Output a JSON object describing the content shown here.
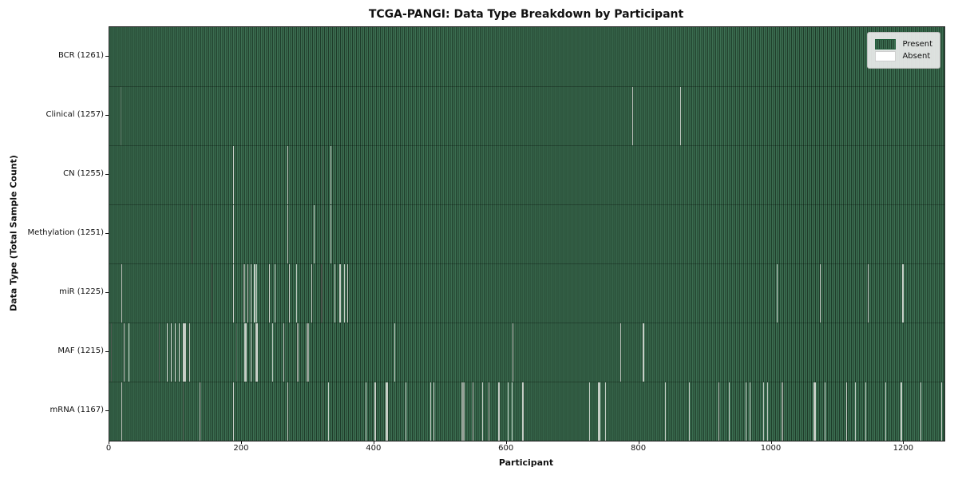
{
  "chart_data": {
    "type": "heatmap",
    "title": "TCGA-PANGI: Data Type Breakdown by Participant",
    "xlabel": "Participant",
    "ylabel": "Data Type (Total Sample Count)",
    "x_ticks": [
      0,
      200,
      400,
      600,
      800,
      1000,
      1200
    ],
    "xlim": [
      0,
      1261
    ],
    "total_participants": 1261,
    "grid": false,
    "legend_position": "upper right",
    "legend": [
      {
        "label": "Present",
        "color": "#2e8b57"
      },
      {
        "label": "Absent",
        "color": "#ffffff"
      }
    ],
    "colors": {
      "present": "#2e8b57",
      "absent": "#ffffff",
      "stripe_light": "#3c6f52",
      "stripe_dark": "#1f3c2a",
      "absent_line_l": "#c6cec6",
      "absent_line_m": "#95a197",
      "absent_line_d": "#4a564c"
    },
    "absent_line_format": "[participant_index, line_width_px, shade l|m|d]",
    "rows": [
      {
        "key": "bcr",
        "label": "BCR (1261)",
        "name": "BCR",
        "sample_count": 1261,
        "absent_lines": []
      },
      {
        "key": "clinical",
        "label": "Clinical (1257)",
        "name": "Clinical",
        "sample_count": 1257,
        "absent_lines": [
          [
            17,
            1,
            "d"
          ],
          [
            790,
            1,
            "l"
          ],
          [
            862,
            1,
            "l"
          ]
        ]
      },
      {
        "key": "cn",
        "label": "CN (1255)",
        "name": "CN",
        "sample_count": 1255,
        "absent_lines": [
          [
            188,
            1,
            "l"
          ],
          [
            269,
            1,
            "l"
          ],
          [
            323,
            1,
            "d"
          ],
          [
            334,
            1,
            "l"
          ]
        ]
      },
      {
        "key": "methylation",
        "label": "Methylation (1251)",
        "name": "Methylation",
        "sample_count": 1251,
        "absent_lines": [
          [
            125,
            1,
            "d"
          ],
          [
            188,
            1,
            "l"
          ],
          [
            270,
            1,
            "l"
          ],
          [
            309,
            1,
            "l"
          ],
          [
            323,
            1,
            "d"
          ],
          [
            334,
            1,
            "l"
          ]
        ]
      },
      {
        "key": "mir",
        "label": "miR (1225)",
        "name": "miR",
        "sample_count": 1225,
        "absent_lines": [
          [
            19,
            1,
            "l"
          ],
          [
            155,
            1,
            "d"
          ],
          [
            188,
            1,
            "l"
          ],
          [
            204,
            2,
            "m"
          ],
          [
            209,
            1,
            "l"
          ],
          [
            214,
            1,
            "l"
          ],
          [
            219,
            2,
            "l"
          ],
          [
            223,
            1,
            "l"
          ],
          [
            242,
            1,
            "l"
          ],
          [
            250,
            1,
            "l"
          ],
          [
            272,
            1,
            "l"
          ],
          [
            283,
            1,
            "l"
          ],
          [
            306,
            1,
            "l"
          ],
          [
            321,
            2,
            "d"
          ],
          [
            341,
            1,
            "l"
          ],
          [
            349,
            2,
            "l"
          ],
          [
            355,
            1,
            "l"
          ],
          [
            360,
            1,
            "l"
          ],
          [
            1009,
            1,
            "l"
          ],
          [
            1073,
            1,
            "l"
          ],
          [
            1146,
            1,
            "l"
          ],
          [
            1198,
            2,
            "l"
          ]
        ]
      },
      {
        "key": "maf",
        "label": "MAF (1215)",
        "name": "MAF",
        "sample_count": 1215,
        "absent_lines": [
          [
            3,
            1,
            "d"
          ],
          [
            22,
            1,
            "l"
          ],
          [
            29,
            1,
            "l"
          ],
          [
            75,
            1,
            "d"
          ],
          [
            87,
            1,
            "l"
          ],
          [
            93,
            1,
            "l"
          ],
          [
            100,
            1,
            "l"
          ],
          [
            106,
            1,
            "l"
          ],
          [
            113,
            4,
            "l"
          ],
          [
            121,
            1,
            "l"
          ],
          [
            192,
            1,
            "d"
          ],
          [
            205,
            3,
            "l"
          ],
          [
            214,
            1,
            "l"
          ],
          [
            223,
            3,
            "l"
          ],
          [
            246,
            1,
            "l"
          ],
          [
            264,
            1,
            "l"
          ],
          [
            284,
            2,
            "m"
          ],
          [
            299,
            3,
            "m"
          ],
          [
            431,
            1,
            "l"
          ],
          [
            610,
            1,
            "l"
          ],
          [
            772,
            1,
            "l"
          ],
          [
            806,
            2,
            "l"
          ]
        ]
      },
      {
        "key": "mrna",
        "label": "mRNA (1167)",
        "name": "mRNA",
        "sample_count": 1167,
        "absent_lines": [
          [
            19,
            1,
            "l"
          ],
          [
            111,
            1,
            "d"
          ],
          [
            137,
            1,
            "l"
          ],
          [
            188,
            1,
            "l"
          ],
          [
            269,
            1,
            "l"
          ],
          [
            323,
            1,
            "d"
          ],
          [
            331,
            1,
            "l"
          ],
          [
            388,
            1,
            "l"
          ],
          [
            401,
            2,
            "l"
          ],
          [
            419,
            3,
            "l"
          ],
          [
            448,
            1,
            "l"
          ],
          [
            485,
            1,
            "l"
          ],
          [
            490,
            1,
            "l"
          ],
          [
            534,
            4,
            "m"
          ],
          [
            549,
            1,
            "l"
          ],
          [
            564,
            1,
            "l"
          ],
          [
            573,
            1,
            "l"
          ],
          [
            588,
            2,
            "l"
          ],
          [
            602,
            1,
            "l"
          ],
          [
            608,
            1,
            "l"
          ],
          [
            624,
            2,
            "l"
          ],
          [
            725,
            1,
            "l"
          ],
          [
            740,
            3,
            "l"
          ],
          [
            749,
            1,
            "l"
          ],
          [
            840,
            1,
            "l"
          ],
          [
            876,
            1,
            "l"
          ],
          [
            921,
            1,
            "l"
          ],
          [
            936,
            1,
            "l"
          ],
          [
            961,
            1,
            "l"
          ],
          [
            967,
            1,
            "l"
          ],
          [
            988,
            1,
            "l"
          ],
          [
            994,
            1,
            "l"
          ],
          [
            1016,
            2,
            "m"
          ],
          [
            1065,
            3,
            "l"
          ],
          [
            1081,
            1,
            "l"
          ],
          [
            1113,
            1,
            "l"
          ],
          [
            1127,
            1,
            "l"
          ],
          [
            1142,
            1,
            "l"
          ],
          [
            1172,
            1,
            "l"
          ],
          [
            1196,
            2,
            "l"
          ],
          [
            1226,
            1,
            "l"
          ],
          [
            1257,
            1,
            "l"
          ]
        ]
      }
    ]
  }
}
